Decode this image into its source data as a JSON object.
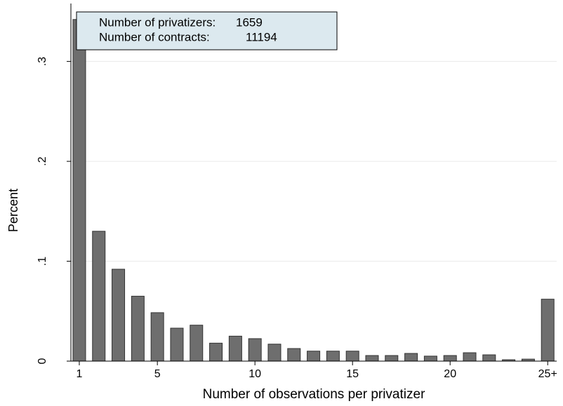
{
  "chart_data": {
    "type": "bar",
    "x_label": "Number of observations per privatizer",
    "y_label": "Percent",
    "annotations": [
      {
        "label": "Number of privatizers:",
        "value": 1659
      },
      {
        "label": "Number of contracts:",
        "value": 11194
      }
    ],
    "x": [
      1,
      2,
      3,
      4,
      5,
      6,
      7,
      8,
      9,
      10,
      11,
      12,
      13,
      14,
      15,
      16,
      17,
      18,
      19,
      20,
      21,
      22,
      23,
      24,
      25
    ],
    "values": [
      0.342,
      0.13,
      0.092,
      0.065,
      0.0485,
      0.033,
      0.036,
      0.018,
      0.025,
      0.0225,
      0.017,
      0.0126,
      0.01,
      0.01,
      0.01,
      0.0056,
      0.0056,
      0.0077,
      0.005,
      0.0056,
      0.0084,
      0.0063,
      0.0014,
      0.002,
      0.062
    ],
    "color": "#6e6e6e",
    "xlim": [
      0.57,
      25.46
    ],
    "ylim": [
      0,
      0.358
    ],
    "xticks": [
      1,
      5,
      10,
      15,
      20,
      {
        "value": 25,
        "label": "25+"
      }
    ],
    "yticks": [
      0,
      {
        "value": 0.1,
        "label": ".1"
      },
      {
        "value": 0.2,
        "label": ".2"
      },
      {
        "value": 0.3,
        "label": ".3"
      }
    ],
    "grid": true
  }
}
